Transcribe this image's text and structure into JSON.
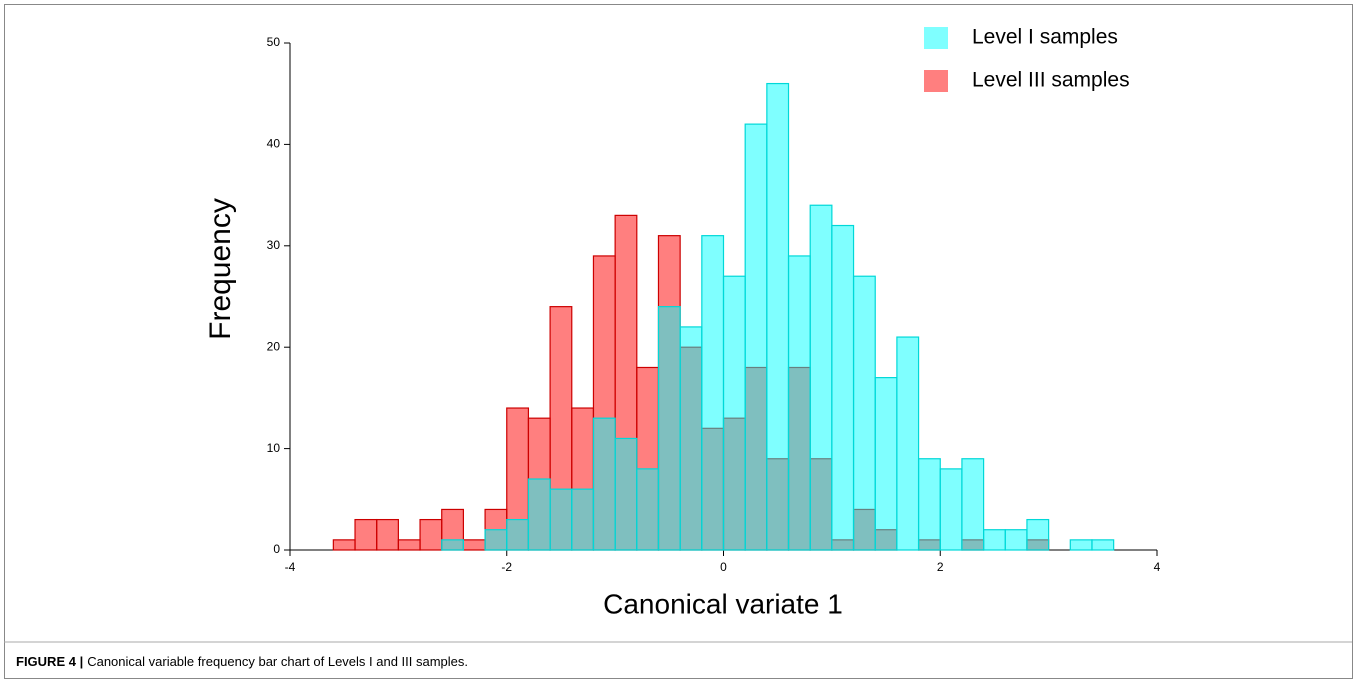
{
  "chart_data": {
    "type": "histogram",
    "xlabel": "Canonical variate 1",
    "ylabel": "Frequency",
    "caption_label": "FIGURE 4 |",
    "caption": "Canonical variable frequency bar chart of Levels I and III samples.",
    "bins": [
      -3.6,
      -3.4,
      -3.2,
      -3.0,
      -2.8,
      -2.6,
      -2.4,
      -2.2,
      -2.0,
      -1.8,
      -1.6,
      -1.4,
      -1.2,
      -1.0,
      -0.8,
      -0.6,
      -0.4,
      -0.2,
      0,
      0.2,
      0.4,
      0.6,
      0.8,
      1.0,
      1.2,
      1.4,
      1.6,
      1.8,
      2.0,
      2.2,
      2.4,
      2.6,
      2.8,
      3.0,
      3.2,
      3.4,
      3.6
    ],
    "series": [
      {
        "name": "Level III samples",
        "color": "#ff0000",
        "edge": "#cc0000",
        "values": [
          1,
          3,
          3,
          1,
          3,
          4,
          1,
          4,
          14,
          13,
          24,
          14,
          29,
          33,
          18,
          31,
          20,
          12,
          13,
          18,
          9,
          18,
          9,
          1,
          4,
          2,
          0,
          1,
          0,
          1,
          0,
          0,
          1,
          0,
          0,
          0
        ]
      },
      {
        "name": "Level I samples",
        "color": "#00ffff",
        "edge": "#00d8d8",
        "values": [
          0,
          0,
          0,
          0,
          0,
          1,
          0,
          2,
          3,
          7,
          6,
          6,
          13,
          11,
          8,
          24,
          22,
          31,
          27,
          42,
          46,
          29,
          34,
          32,
          27,
          17,
          21,
          9,
          8,
          9,
          2,
          2,
          3,
          0,
          1,
          1
        ]
      }
    ],
    "legend_order": [
      1,
      0
    ],
    "xlim": [
      -4,
      4
    ],
    "xticks": [
      -4,
      -2,
      0,
      2,
      4
    ],
    "ylim": [
      0,
      50
    ],
    "yticks": [
      0,
      10,
      20,
      30,
      40,
      50
    ]
  }
}
